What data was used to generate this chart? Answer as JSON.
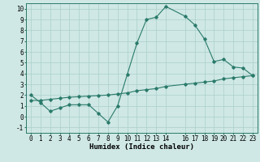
{
  "line1_x": [
    0,
    1,
    2,
    3,
    4,
    5,
    6,
    7,
    8,
    9,
    10,
    11,
    12,
    13,
    14,
    16,
    17,
    18,
    19,
    20,
    21,
    22,
    23
  ],
  "line1_y": [
    2.0,
    1.3,
    0.5,
    0.8,
    1.1,
    1.1,
    1.1,
    0.3,
    -0.5,
    1.0,
    3.9,
    6.8,
    9.0,
    9.2,
    10.2,
    9.3,
    8.5,
    7.2,
    5.1,
    5.3,
    4.6,
    4.5,
    3.8
  ],
  "line2_x": [
    0,
    1,
    2,
    3,
    4,
    5,
    6,
    7,
    8,
    9,
    10,
    11,
    12,
    13,
    14,
    16,
    17,
    18,
    19,
    20,
    21,
    22,
    23
  ],
  "line2_y": [
    1.5,
    1.5,
    1.6,
    1.7,
    1.8,
    1.85,
    1.9,
    1.95,
    2.0,
    2.1,
    2.2,
    2.4,
    2.5,
    2.6,
    2.8,
    3.0,
    3.1,
    3.2,
    3.3,
    3.5,
    3.6,
    3.7,
    3.8
  ],
  "line_color": "#2a7a6a",
  "bg_color": "#cfe8e5",
  "grid_color": "#aacfcc",
  "xlabel": "Humidex (Indice chaleur)",
  "xlim": [
    -0.5,
    23.5
  ],
  "ylim": [
    -1.5,
    10.5
  ],
  "xticks": [
    0,
    1,
    2,
    3,
    4,
    5,
    6,
    7,
    8,
    9,
    10,
    11,
    12,
    13,
    14,
    16,
    17,
    18,
    19,
    20,
    21,
    22,
    23
  ],
  "yticks": [
    -1,
    0,
    1,
    2,
    3,
    4,
    5,
    6,
    7,
    8,
    9,
    10
  ],
  "xlabel_fontsize": 6.5,
  "tick_fontsize": 5.5
}
